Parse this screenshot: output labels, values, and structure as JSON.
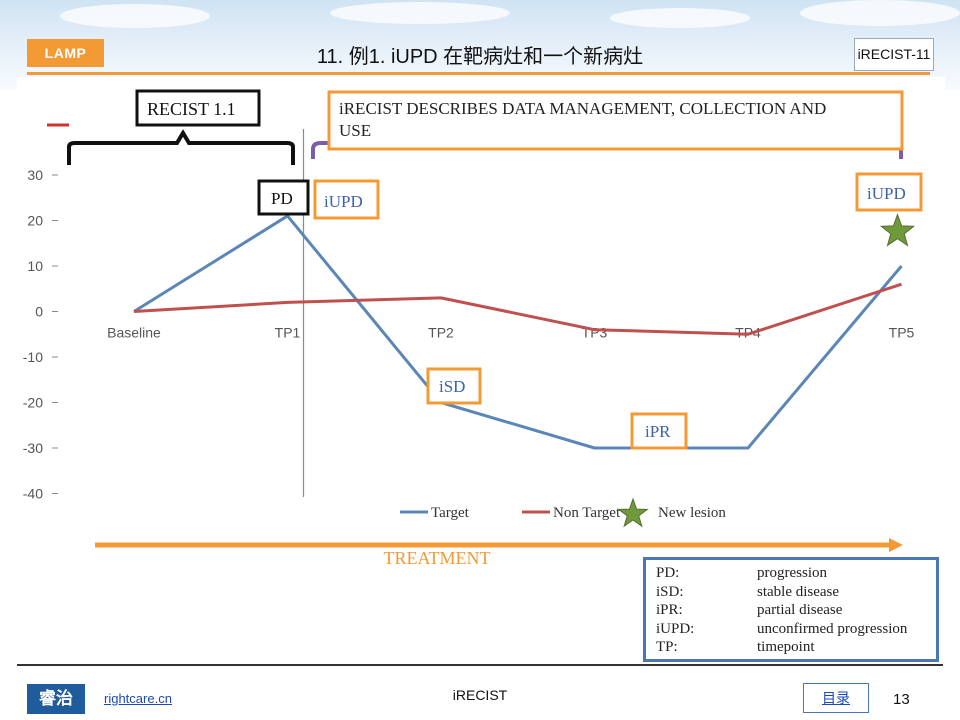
{
  "header": {
    "logo_text": "LAMP",
    "title": "11. 例1. iUPD 在靶病灶和一个新病灶",
    "tag": "iRECIST-11"
  },
  "annotations": {
    "recist_label": "RECIST 1.1",
    "irecist_note": "iRECIST DESCRIBES DATA MANAGEMENT, COLLECTION AND USE",
    "pd_label": "PD",
    "iupd_tp1_label": "iUPD",
    "isd_label": "iSD",
    "ipr_label": "iPR",
    "iupd_tp5_label": "iUPD",
    "treatment_label": "TREATMENT"
  },
  "chart_data": {
    "type": "line",
    "categories": [
      "Baseline",
      "TP1",
      "TP2",
      "TP3",
      "TP4",
      "TP5"
    ],
    "series": [
      {
        "name": "Target",
        "values": [
          0,
          21,
          -20,
          -30,
          -30,
          10
        ],
        "color": "#5b86b8"
      },
      {
        "name": "Non Target",
        "values": [
          0,
          2,
          3,
          -4,
          -5,
          6
        ],
        "color": "#c0504d"
      }
    ],
    "markers": [
      {
        "name": "New lesion",
        "category": "TP5",
        "value": 18,
        "color": "#6f9a3c",
        "shape": "star"
      }
    ],
    "ylim": [
      -40,
      30
    ],
    "yticks": [
      "30",
      "20",
      "10",
      "0",
      "-10",
      "-20",
      "-30",
      "-40"
    ],
    "grid": false,
    "legend_position": "bottom",
    "xlabel": "",
    "ylabel": ""
  },
  "legend_box": {
    "items": [
      {
        "abbr": "PD:",
        "desc": "progression"
      },
      {
        "abbr": "iSD:",
        "desc": "stable disease"
      },
      {
        "abbr": "iPR:",
        "desc": "partial disease"
      },
      {
        "abbr": "iUPD:",
        "desc": "unconfirmed progression"
      },
      {
        "abbr": "TP:",
        "desc": "timepoint"
      }
    ]
  },
  "footer": {
    "logo_text": "睿治",
    "link": "rightcare.cn",
    "center": "iRECIST",
    "toc_button": "目录",
    "page_number": "13"
  }
}
